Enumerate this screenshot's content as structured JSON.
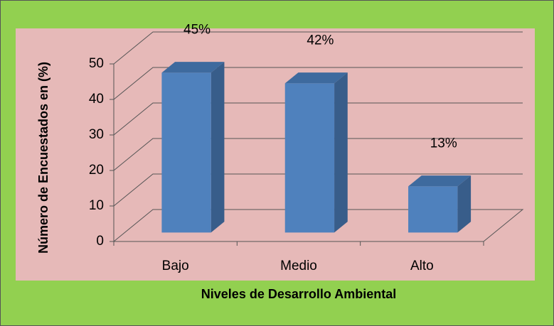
{
  "chart_data": {
    "type": "bar3d",
    "categories": [
      "Bajo",
      "Medio",
      "Alto"
    ],
    "values": [
      45,
      42,
      13
    ],
    "value_labels": [
      "45%",
      "42%",
      "13%"
    ],
    "color": "#4f81bd",
    "ylim": [
      0,
      50
    ],
    "yticks": [
      0,
      10,
      20,
      30,
      40,
      50
    ],
    "grid": true,
    "ylabel": "Número de Encuestados en (%)",
    "xlabel": "Niveles de Desarrollo Ambiental"
  }
}
